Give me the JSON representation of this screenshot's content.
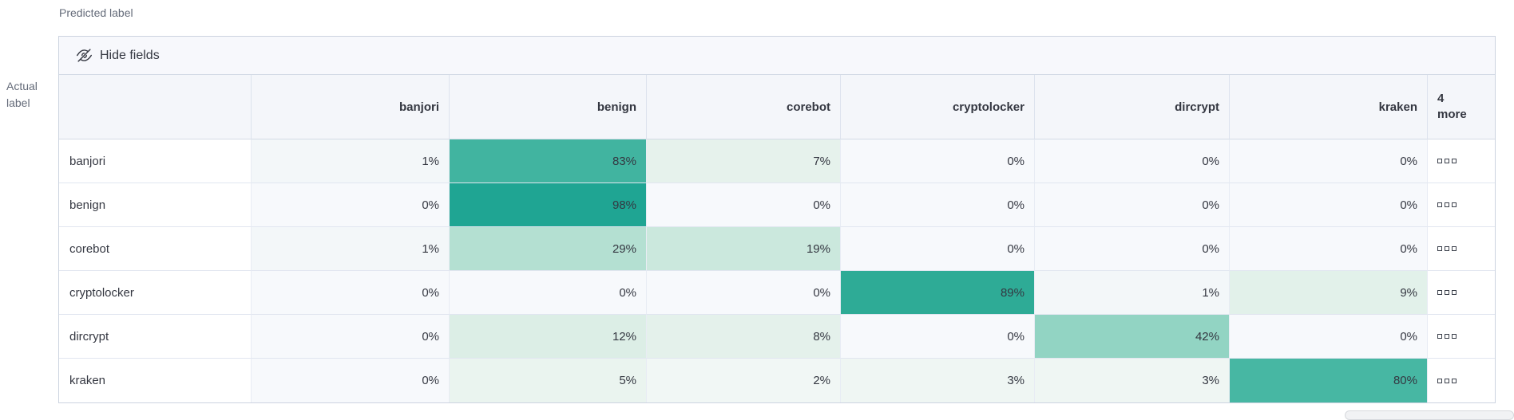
{
  "axes": {
    "predicted_label": "Predicted label",
    "actual_label_line1": "Actual",
    "actual_label_line2": "label"
  },
  "toolbar": {
    "hide_fields_label": "Hide fields"
  },
  "matrix": {
    "columns": [
      "banjori",
      "benign",
      "corebot",
      "cryptolocker",
      "dircrypt",
      "kraken"
    ],
    "more_header": {
      "count": "4",
      "word": "more"
    },
    "rows": [
      {
        "label": "banjori",
        "cells": [
          {
            "v": "1%",
            "bg": "#f3f7f9"
          },
          {
            "v": "83%",
            "bg": "#41b4a0"
          },
          {
            "v": "7%",
            "bg": "#e6f2ec"
          },
          {
            "v": "0%",
            "bg": "#f7f9fc"
          },
          {
            "v": "0%",
            "bg": "#f7f9fc"
          },
          {
            "v": "0%",
            "bg": "#f7f9fc"
          }
        ]
      },
      {
        "label": "benign",
        "cells": [
          {
            "v": "0%",
            "bg": "#f7f9fc"
          },
          {
            "v": "98%",
            "bg": "#1fa593"
          },
          {
            "v": "0%",
            "bg": "#f7f9fc"
          },
          {
            "v": "0%",
            "bg": "#f7f9fc"
          },
          {
            "v": "0%",
            "bg": "#f7f9fc"
          },
          {
            "v": "0%",
            "bg": "#f7f9fc"
          }
        ]
      },
      {
        "label": "corebot",
        "cells": [
          {
            "v": "1%",
            "bg": "#f3f7f9"
          },
          {
            "v": "29%",
            "bg": "#b4e0d2"
          },
          {
            "v": "19%",
            "bg": "#cbe8dd"
          },
          {
            "v": "0%",
            "bg": "#f7f9fc"
          },
          {
            "v": "0%",
            "bg": "#f7f9fc"
          },
          {
            "v": "0%",
            "bg": "#f7f9fc"
          }
        ]
      },
      {
        "label": "cryptolocker",
        "cells": [
          {
            "v": "0%",
            "bg": "#f7f9fc"
          },
          {
            "v": "0%",
            "bg": "#f7f9fc"
          },
          {
            "v": "0%",
            "bg": "#f7f9fc"
          },
          {
            "v": "89%",
            "bg": "#2eab96"
          },
          {
            "v": "1%",
            "bg": "#f3f7f9"
          },
          {
            "v": "9%",
            "bg": "#e2f1ea"
          }
        ]
      },
      {
        "label": "dircrypt",
        "cells": [
          {
            "v": "0%",
            "bg": "#f7f9fc"
          },
          {
            "v": "12%",
            "bg": "#dceee6"
          },
          {
            "v": "8%",
            "bg": "#e4f1eb"
          },
          {
            "v": "0%",
            "bg": "#f7f9fc"
          },
          {
            "v": "42%",
            "bg": "#92d4c3"
          },
          {
            "v": "0%",
            "bg": "#f7f9fc"
          }
        ]
      },
      {
        "label": "kraken",
        "cells": [
          {
            "v": "0%",
            "bg": "#f7f9fc"
          },
          {
            "v": "5%",
            "bg": "#eaf4ef"
          },
          {
            "v": "2%",
            "bg": "#f1f7f5"
          },
          {
            "v": "3%",
            "bg": "#eff6f3"
          },
          {
            "v": "3%",
            "bg": "#eff6f3"
          },
          {
            "v": "80%",
            "bg": "#47b7a3"
          }
        ]
      }
    ]
  },
  "chart_data": {
    "type": "heatmap",
    "xlabel": "Predicted label",
    "ylabel": "Actual label",
    "x_categories": [
      "banjori",
      "benign",
      "corebot",
      "cryptolocker",
      "dircrypt",
      "kraken"
    ],
    "y_categories": [
      "banjori",
      "benign",
      "corebot",
      "cryptolocker",
      "dircrypt",
      "kraken"
    ],
    "values_percent": [
      [
        1,
        83,
        7,
        0,
        0,
        0
      ],
      [
        0,
        98,
        0,
        0,
        0,
        0
      ],
      [
        1,
        29,
        19,
        0,
        0,
        0
      ],
      [
        0,
        0,
        0,
        89,
        1,
        9
      ],
      [
        0,
        12,
        8,
        0,
        42,
        0
      ],
      [
        0,
        5,
        2,
        3,
        3,
        80
      ]
    ],
    "hidden_columns_indicator": "4 more",
    "color_low": "#f7f9fc",
    "color_high": "#1fa593"
  },
  "icons": {
    "hide_fields_icon": "eye-closed-icon",
    "row_actions_icon": "boxes-horizontal-icon"
  },
  "colors": {
    "accent_teal": "#1fa593",
    "header_bg": "#f4f6fa",
    "toolbar_bg": "#f7f8fc",
    "panel_border": "#ccd3e0",
    "text": "#343741",
    "muted_text": "#646b79"
  }
}
